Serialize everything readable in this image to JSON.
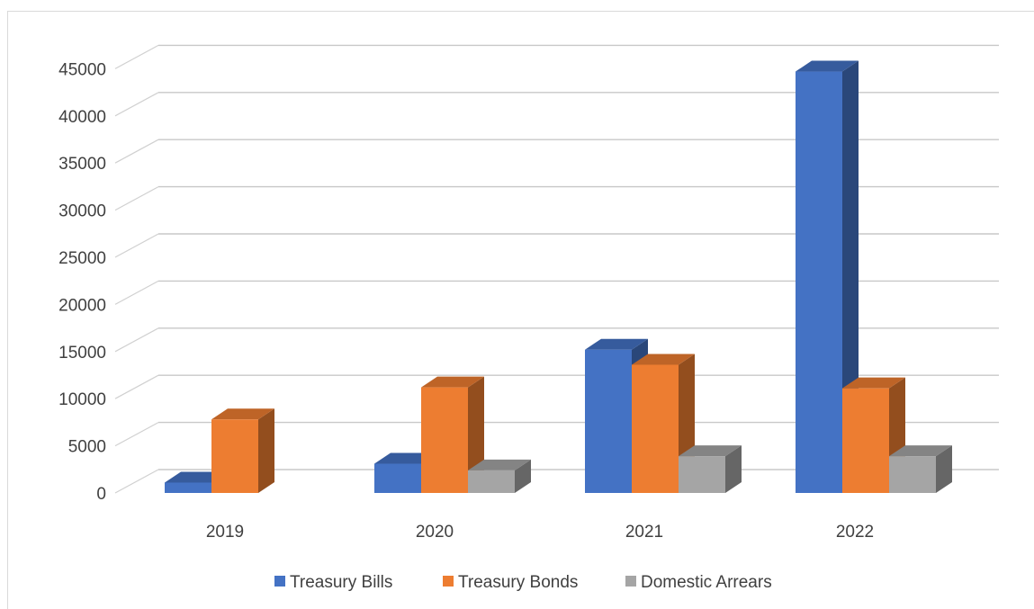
{
  "chart_data": {
    "type": "bar",
    "categories": [
      "2019",
      "2020",
      "2021",
      "2022"
    ],
    "series": [
      {
        "name": "Treasury Bills",
        "color": "#4472c4",
        "values": [
          1100,
          3100,
          15200,
          44700
        ]
      },
      {
        "name": "Treasury Bonds",
        "color": "#ed7d31",
        "values": [
          7800,
          11200,
          13600,
          11100
        ]
      },
      {
        "name": "Domestic Arrears",
        "color": "#a5a5a5",
        "values": [
          null,
          2400,
          3900,
          3900
        ]
      }
    ],
    "yticks": [
      "0",
      "5000",
      "10000",
      "15000",
      "20000",
      "25000",
      "30000",
      "35000",
      "40000",
      "45000"
    ],
    "ylim": [
      0,
      45000
    ],
    "grid": true,
    "legend_position": "bottom",
    "title": "",
    "xlabel": "",
    "ylabel": ""
  }
}
